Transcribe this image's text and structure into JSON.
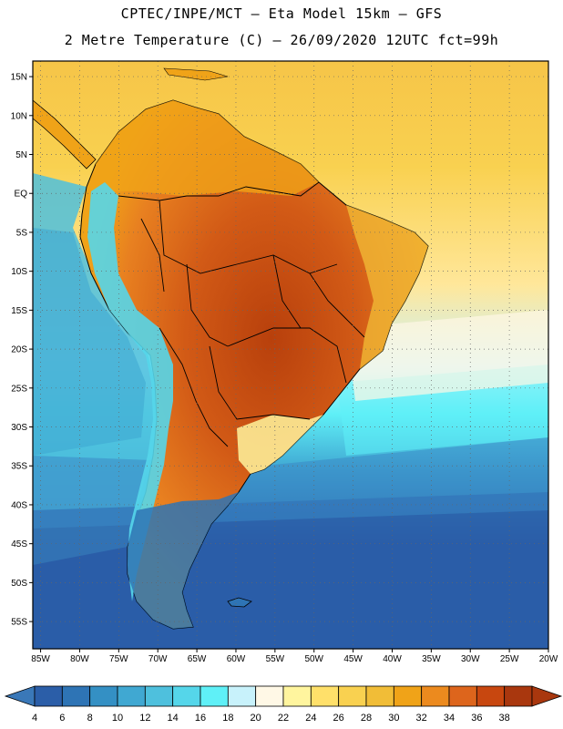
{
  "title": {
    "line1": "CPTEC/INPE/MCT –  Eta Model 15km – GFS",
    "line2": "2 Metre Temperature (C) – 26/09/2020 12UTC fct=99h"
  },
  "map": {
    "lat_labels": [
      "15N",
      "10N",
      "5N",
      "EQ",
      "5S",
      "10S",
      "15S",
      "20S",
      "25S",
      "30S",
      "35S",
      "40S",
      "45S",
      "50S",
      "55S"
    ],
    "lon_labels": [
      "85W",
      "80W",
      "75W",
      "70W",
      "65W",
      "60W",
      "55W",
      "50W",
      "45W",
      "40W",
      "35W",
      "30W",
      "25W",
      "20W"
    ]
  },
  "colorbar": {
    "labels": [
      "4",
      "6",
      "8",
      "10",
      "12",
      "14",
      "16",
      "18",
      "20",
      "22",
      "24",
      "26",
      "28",
      "30",
      "32",
      "34",
      "36",
      "38"
    ],
    "colors": [
      "#2b5ea8",
      "#2e74b5",
      "#3490c4",
      "#40a8d2",
      "#4ec0dd",
      "#55d6ea",
      "#5ff0f7",
      "#c8f2fb",
      "#fff8e6",
      "#fff59e",
      "#ffe06a",
      "#f9d150",
      "#f1bd37",
      "#f0a318",
      "#ec8a1e",
      "#dd651c",
      "#c8470f",
      "#a9370e"
    ],
    "low_color": "#3a78b8",
    "high_color": "#a9370e"
  },
  "colors": {
    "ocean_south": "#2b5ea8",
    "ocean_mid": "#3a88c6",
    "ocean_cold_current": "#4ec0dd",
    "ocean_warm": "#f9d150",
    "land_hot": "#c8470f",
    "land_warm": "#e88020",
    "andes": "#55d6ea",
    "patagonia": "#2e74b5",
    "border": "#000000"
  }
}
